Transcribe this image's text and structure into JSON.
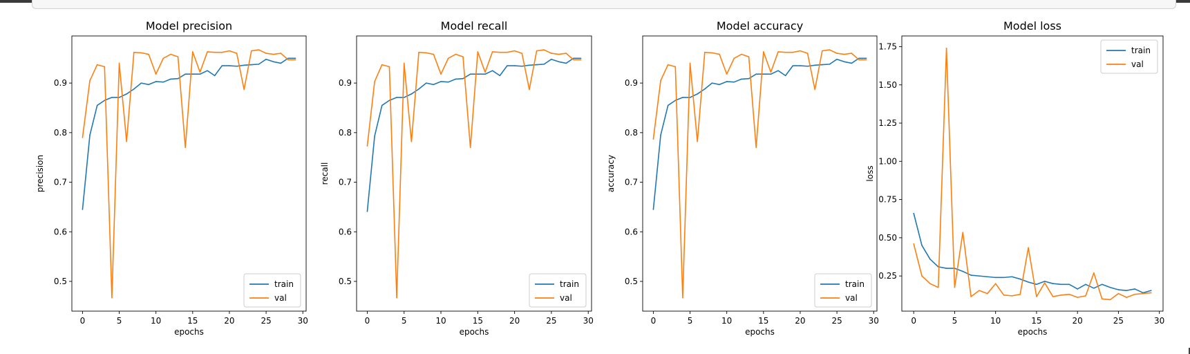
{
  "colors": {
    "train": "#1f77b4",
    "val": "#ff7f0e"
  },
  "chart_data": [
    {
      "type": "line",
      "title": "Model precision",
      "xlabel": "epochs",
      "ylabel": "precision",
      "xlim": [
        -1.45,
        30.45
      ],
      "ylim": [
        0.44,
        0.995
      ],
      "xticks": [
        0,
        5,
        10,
        15,
        20,
        25,
        30
      ],
      "yticks": [
        0.5,
        0.6,
        0.7,
        0.8,
        0.9
      ],
      "legend_position": "lower-right",
      "x": [
        0,
        1,
        2,
        3,
        4,
        5,
        6,
        7,
        8,
        9,
        10,
        11,
        12,
        13,
        14,
        15,
        16,
        17,
        18,
        19,
        20,
        21,
        22,
        23,
        24,
        25,
        26,
        27,
        28,
        29
      ],
      "series": [
        {
          "name": "train",
          "color": "#1f77b4",
          "values": [
            0.645,
            0.795,
            0.855,
            0.865,
            0.871,
            0.871,
            0.878,
            0.888,
            0.9,
            0.897,
            0.903,
            0.902,
            0.908,
            0.909,
            0.918,
            0.918,
            0.918,
            0.925,
            0.915,
            0.935,
            0.935,
            0.934,
            0.936,
            0.937,
            0.938,
            0.948,
            0.943,
            0.94,
            0.95,
            0.95
          ]
        },
        {
          "name": "val",
          "color": "#ff7f0e",
          "values": [
            0.79,
            0.905,
            0.937,
            0.933,
            0.467,
            0.94,
            0.782,
            0.962,
            0.961,
            0.958,
            0.918,
            0.95,
            0.958,
            0.953,
            0.77,
            0.963,
            0.922,
            0.963,
            0.962,
            0.962,
            0.965,
            0.96,
            0.887,
            0.965,
            0.967,
            0.96,
            0.958,
            0.96,
            0.947,
            0.947
          ]
        }
      ]
    },
    {
      "type": "line",
      "title": "Model recall",
      "xlabel": "epochs",
      "ylabel": "recall",
      "xlim": [
        -1.45,
        30.45
      ],
      "ylim": [
        0.44,
        0.995
      ],
      "xticks": [
        0,
        5,
        10,
        15,
        20,
        25,
        30
      ],
      "yticks": [
        0.5,
        0.6,
        0.7,
        0.8,
        0.9
      ],
      "legend_position": "lower-right",
      "x": [
        0,
        1,
        2,
        3,
        4,
        5,
        6,
        7,
        8,
        9,
        10,
        11,
        12,
        13,
        14,
        15,
        16,
        17,
        18,
        19,
        20,
        21,
        22,
        23,
        24,
        25,
        26,
        27,
        28,
        29
      ],
      "series": [
        {
          "name": "train",
          "color": "#1f77b4",
          "values": [
            0.641,
            0.793,
            0.855,
            0.865,
            0.871,
            0.871,
            0.878,
            0.888,
            0.9,
            0.897,
            0.903,
            0.902,
            0.908,
            0.909,
            0.918,
            0.918,
            0.918,
            0.925,
            0.915,
            0.935,
            0.935,
            0.934,
            0.936,
            0.937,
            0.938,
            0.948,
            0.943,
            0.94,
            0.95,
            0.95
          ]
        },
        {
          "name": "val",
          "color": "#ff7f0e",
          "values": [
            0.773,
            0.903,
            0.937,
            0.933,
            0.467,
            0.94,
            0.782,
            0.962,
            0.961,
            0.958,
            0.918,
            0.95,
            0.958,
            0.953,
            0.77,
            0.963,
            0.922,
            0.963,
            0.962,
            0.962,
            0.965,
            0.96,
            0.887,
            0.965,
            0.967,
            0.96,
            0.958,
            0.96,
            0.947,
            0.947
          ]
        }
      ]
    },
    {
      "type": "line",
      "title": "Model accuracy",
      "xlabel": "epochs",
      "ylabel": "accuracy",
      "xlim": [
        -1.45,
        30.45
      ],
      "ylim": [
        0.44,
        0.995
      ],
      "xticks": [
        0,
        5,
        10,
        15,
        20,
        25,
        30
      ],
      "yticks": [
        0.5,
        0.6,
        0.7,
        0.8,
        0.9
      ],
      "legend_position": "lower-right",
      "x": [
        0,
        1,
        2,
        3,
        4,
        5,
        6,
        7,
        8,
        9,
        10,
        11,
        12,
        13,
        14,
        15,
        16,
        17,
        18,
        19,
        20,
        21,
        22,
        23,
        24,
        25,
        26,
        27,
        28,
        29
      ],
      "series": [
        {
          "name": "train",
          "color": "#1f77b4",
          "values": [
            0.645,
            0.795,
            0.855,
            0.865,
            0.871,
            0.871,
            0.878,
            0.888,
            0.9,
            0.897,
            0.903,
            0.902,
            0.908,
            0.909,
            0.918,
            0.918,
            0.918,
            0.925,
            0.915,
            0.935,
            0.935,
            0.934,
            0.936,
            0.937,
            0.938,
            0.948,
            0.943,
            0.94,
            0.95,
            0.95
          ]
        },
        {
          "name": "val",
          "color": "#ff7f0e",
          "values": [
            0.787,
            0.905,
            0.937,
            0.933,
            0.467,
            0.94,
            0.782,
            0.962,
            0.961,
            0.958,
            0.918,
            0.95,
            0.958,
            0.953,
            0.77,
            0.963,
            0.922,
            0.963,
            0.962,
            0.962,
            0.965,
            0.96,
            0.887,
            0.965,
            0.967,
            0.96,
            0.958,
            0.96,
            0.947,
            0.947
          ]
        }
      ]
    },
    {
      "type": "line",
      "title": "Model loss",
      "xlabel": "epochs",
      "ylabel": "loss",
      "xlim": [
        -1.45,
        30.45
      ],
      "ylim": [
        0.02,
        1.82
      ],
      "xticks": [
        0,
        5,
        10,
        15,
        20,
        25,
        30
      ],
      "yticks": [
        0.25,
        0.5,
        0.75,
        1.0,
        1.25,
        1.5,
        1.75
      ],
      "ytick_labels": [
        "0.25",
        "0.50",
        "0.75",
        "1.00",
        "1.25",
        "1.50",
        "1.75"
      ],
      "legend_position": "upper-right",
      "x": [
        0,
        1,
        2,
        3,
        4,
        5,
        6,
        7,
        8,
        9,
        10,
        11,
        12,
        13,
        14,
        15,
        16,
        17,
        18,
        19,
        20,
        21,
        22,
        23,
        24,
        25,
        26,
        27,
        28,
        29
      ],
      "series": [
        {
          "name": "train",
          "color": "#1f77b4",
          "values": [
            0.66,
            0.45,
            0.36,
            0.31,
            0.3,
            0.3,
            0.28,
            0.255,
            0.25,
            0.245,
            0.24,
            0.24,
            0.245,
            0.23,
            0.21,
            0.195,
            0.215,
            0.2,
            0.195,
            0.195,
            0.165,
            0.195,
            0.17,
            0.195,
            0.175,
            0.16,
            0.155,
            0.165,
            0.14,
            0.155
          ]
        },
        {
          "name": "val",
          "color": "#ff7f0e",
          "values": [
            0.46,
            0.25,
            0.2,
            0.175,
            1.74,
            0.175,
            0.535,
            0.115,
            0.155,
            0.135,
            0.2,
            0.125,
            0.12,
            0.13,
            0.435,
            0.115,
            0.205,
            0.115,
            0.125,
            0.13,
            0.11,
            0.12,
            0.27,
            0.1,
            0.095,
            0.135,
            0.11,
            0.13,
            0.135,
            0.14
          ]
        }
      ]
    }
  ]
}
